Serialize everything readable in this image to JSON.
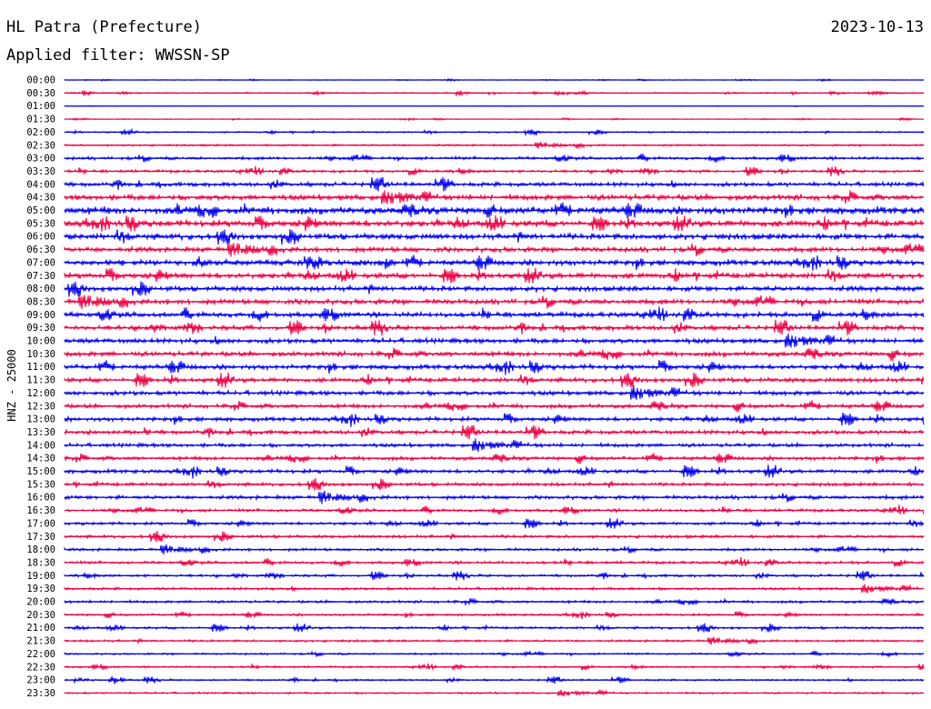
{
  "header": {
    "station": "HL Patra (Prefecture)",
    "date": "2023-10-13",
    "filter_label": "Applied filter: WWSSN-SP"
  },
  "chart_data": {
    "type": "line",
    "ylabel": "HNZ - 25000",
    "trace_labels": [
      "00:00",
      "00:30",
      "01:00",
      "01:30",
      "02:00",
      "02:30",
      "03:00",
      "03:30",
      "04:00",
      "04:30",
      "05:00",
      "05:30",
      "06:00",
      "06:30",
      "07:00",
      "07:30",
      "08:00",
      "08:30",
      "09:00",
      "09:30",
      "10:00",
      "10:30",
      "11:00",
      "11:30",
      "12:00",
      "12:30",
      "13:00",
      "13:30",
      "14:00",
      "14:30",
      "15:00",
      "15:30",
      "16:00",
      "16:30",
      "17:00",
      "17:30",
      "18:00",
      "18:30",
      "19:00",
      "19:30",
      "20:00",
      "20:30",
      "21:00",
      "21:30",
      "22:00",
      "22:30",
      "23:00",
      "23:30"
    ],
    "trace_colors": [
      "#0000ee",
      "#ee0044"
    ],
    "noise_level": [
      0.3,
      0.7,
      0.2,
      0.4,
      0.8,
      1.0,
      1.6,
      1.5,
      2.2,
      3.0,
      4.0,
      3.6,
      3.2,
      2.8,
      3.0,
      3.0,
      2.8,
      2.8,
      2.7,
      2.6,
      2.6,
      2.6,
      2.6,
      2.4,
      2.4,
      2.2,
      2.2,
      2.2,
      2.0,
      2.0,
      2.0,
      1.8,
      2.0,
      1.6,
      1.6,
      1.6,
      1.5,
      1.5,
      1.4,
      1.4,
      1.4,
      1.2,
      1.3,
      1.2,
      1.0,
      1.0,
      1.0,
      1.0
    ]
  }
}
